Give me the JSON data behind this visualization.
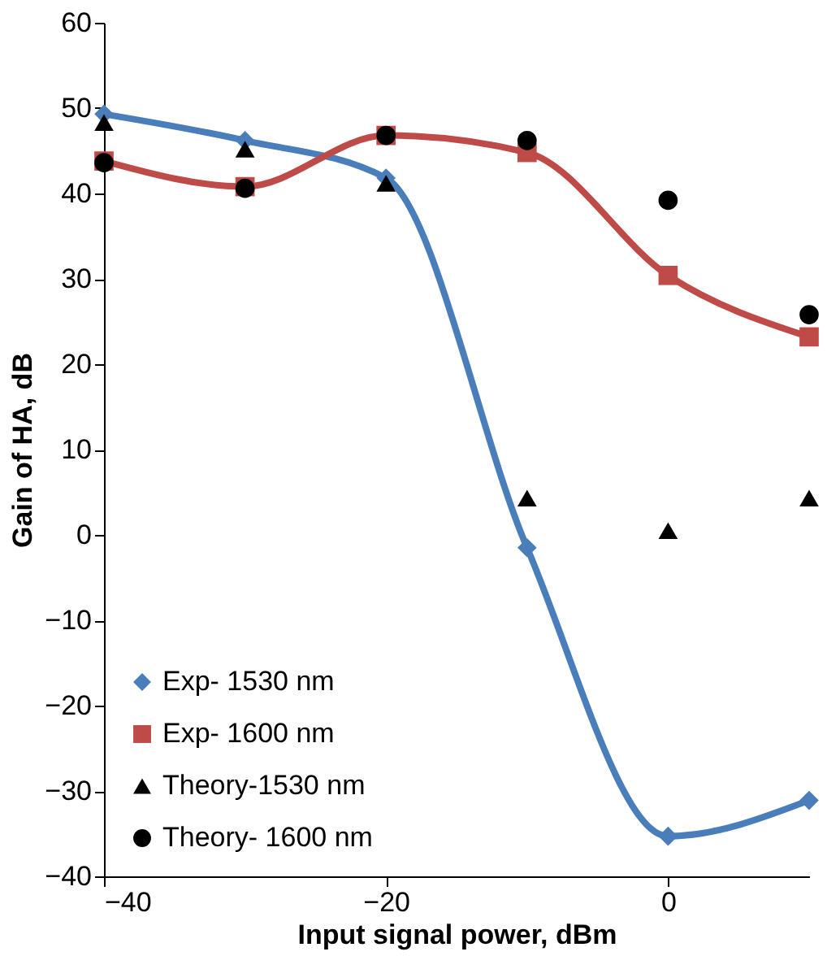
{
  "chart_data": {
    "type": "line",
    "xlabel": "Input signal power, dBm",
    "ylabel": "Gain of HA, dB",
    "x": [
      -40,
      -30,
      -20,
      -10,
      0,
      10
    ],
    "xlim": [
      -40,
      10
    ],
    "xticks": [
      -40,
      -20,
      0
    ],
    "ylim": [
      -40,
      60
    ],
    "yticks": [
      -40,
      -30,
      -20,
      -10,
      0,
      10,
      20,
      30,
      40,
      50,
      60
    ],
    "grid": false,
    "legend": "bottom left",
    "series": [
      {
        "name": "Exp- 1530 nm",
        "marker": "diamond",
        "color": "#4a7ebb",
        "values": [
          49.3,
          46.2,
          41.8,
          -1.5,
          -35.3,
          -31.1
        ]
      },
      {
        "name": "Exp- 1600 nm",
        "marker": "square",
        "color": "#be4b48",
        "values": [
          43.8,
          40.8,
          46.8,
          44.8,
          30.4,
          23.2
        ]
      },
      {
        "name": "Theory-1530 nm",
        "type": "scatter",
        "marker": "triangle",
        "color": "#000000",
        "values": [
          48.3,
          45.2,
          41.2,
          4.3,
          0.5,
          4.3
        ]
      },
      {
        "name": "Theory- 1600 nm",
        "type": "scatter",
        "marker": "circle",
        "color": "#000000",
        "values": [
          43.6,
          40.6,
          46.8,
          46.2,
          39.2,
          25.8
        ]
      }
    ]
  }
}
